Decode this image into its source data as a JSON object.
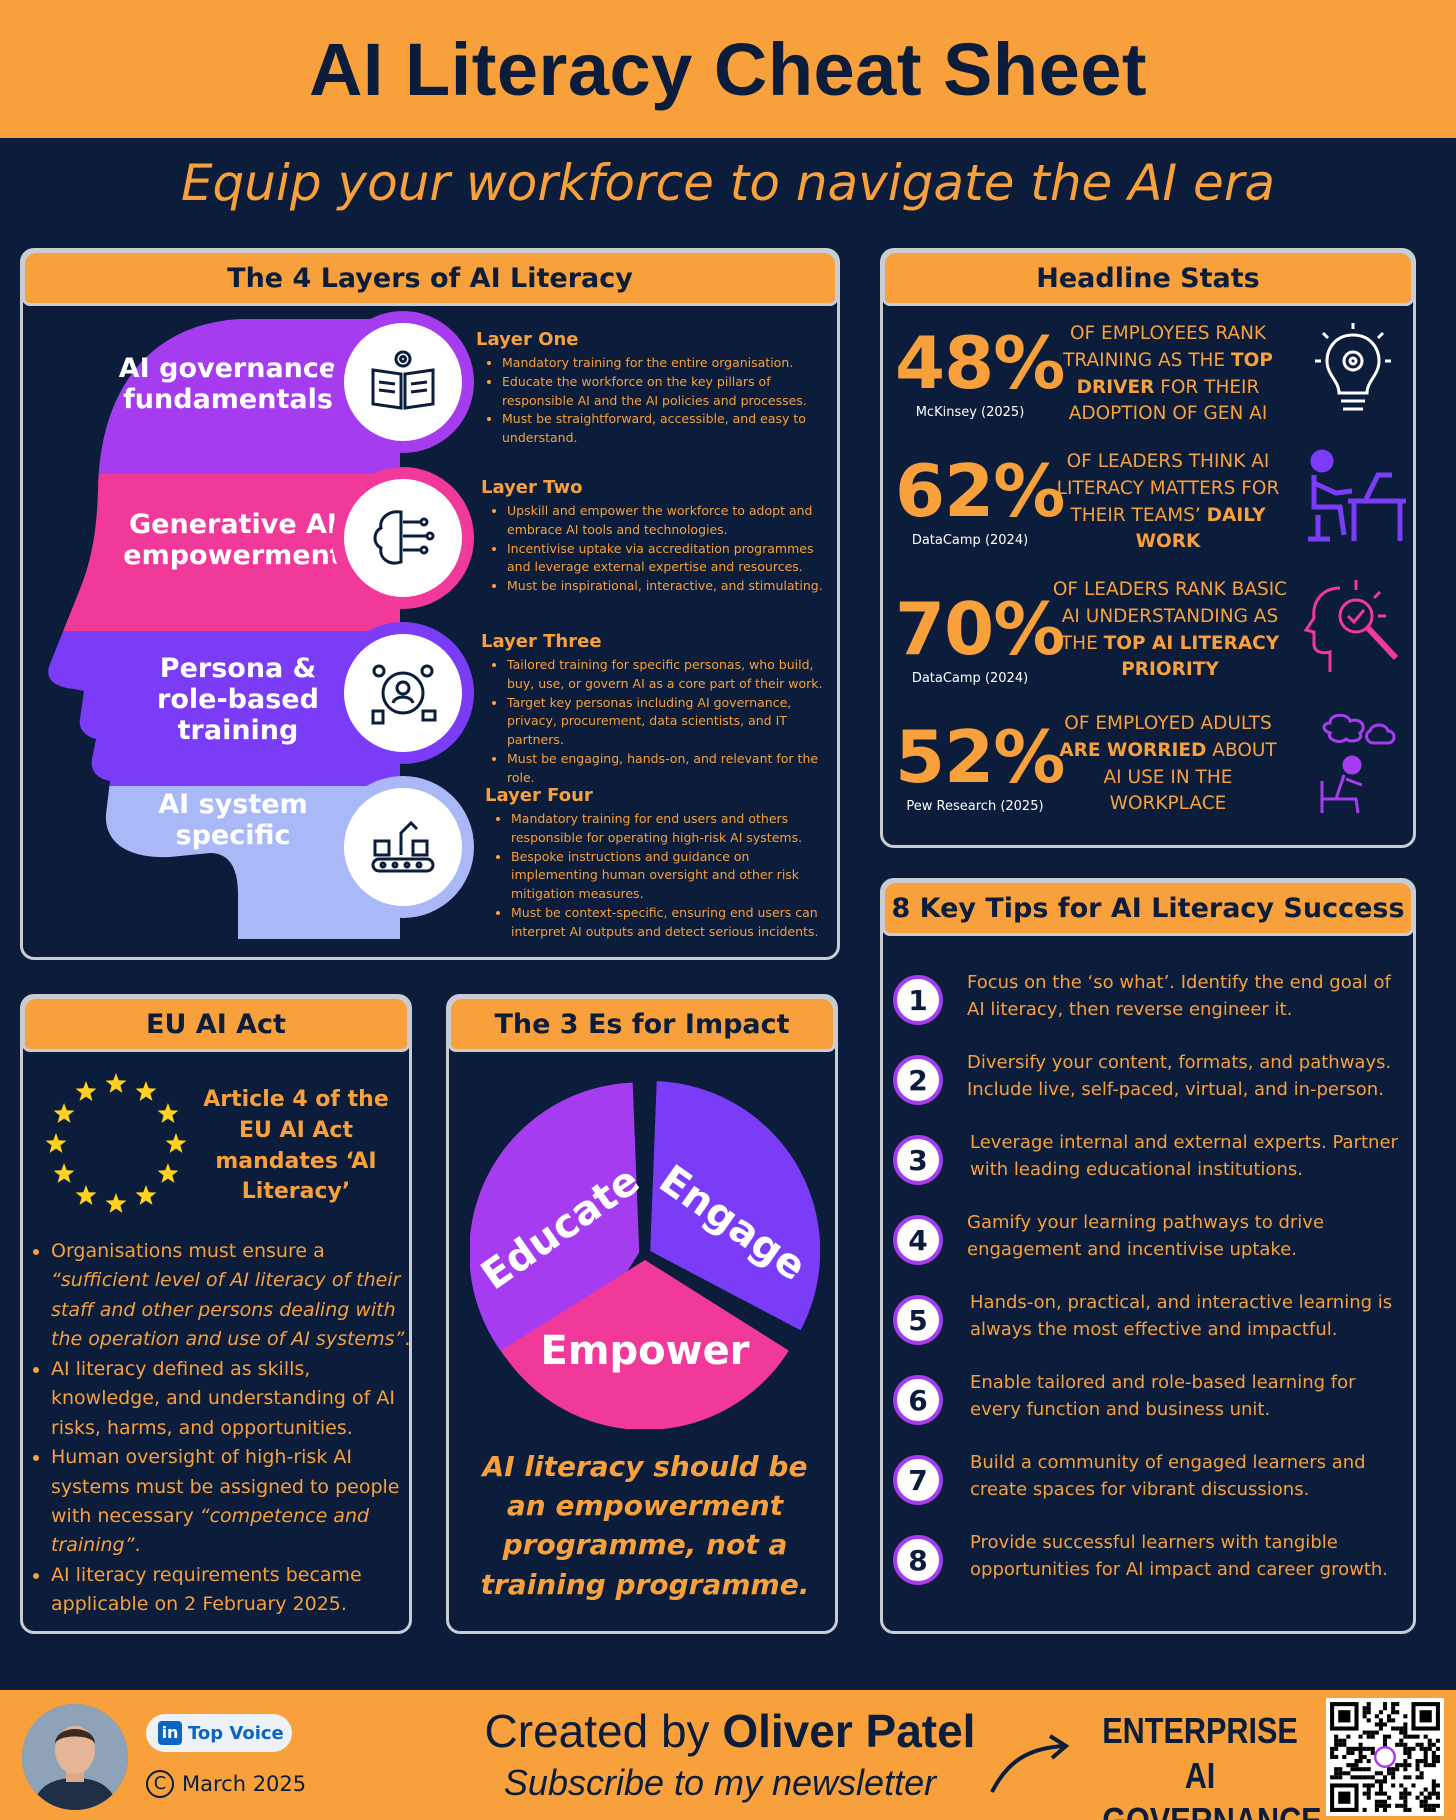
{
  "header": {
    "title": "AI Literacy Cheat Sheet",
    "subtitle": "Equip your workforce to navigate the AI era"
  },
  "layers_panel": {
    "title": "The 4 Layers of AI Literacy",
    "layers": [
      {
        "label": "AI governance fundamentals",
        "heading": "Layer One",
        "icon": "open-book-gear-icon",
        "bullets": [
          "Mandatory training for the entire organisation.",
          "Educate the workforce on the key pillars of responsible AI and the AI policies and processes.",
          "Must be straightforward, accessible, and easy to understand."
        ]
      },
      {
        "label": "Generative AI empowerment",
        "heading": "Layer Two",
        "icon": "brain-circuit-icon",
        "bullets": [
          "Upskill and empower the workforce to adopt and embrace AI tools and technologies.",
          "Incentivise uptake via accreditation programmes and leverage external expertise and resources.",
          "Must be inspirational, interactive, and stimulating."
        ]
      },
      {
        "label": "Persona & role-based training",
        "heading": "Layer Three",
        "icon": "persona-network-icon",
        "bullets": [
          "Tailored training for specific personas, who build, buy, use, or govern AI as a core part of their work.",
          "Target key personas including AI governance, privacy, procurement, data scientists, and IT partners.",
          "Must be engaging, hands-on, and relevant for the role."
        ]
      },
      {
        "label": "AI system specific",
        "heading": "Layer Four",
        "icon": "robot-conveyor-icon",
        "bullets": [
          "Mandatory training for end users and others responsible for operating high-risk AI systems.",
          "Bespoke instructions and guidance on implementing human oversight and other risk mitigation measures.",
          "Must be context-specific, ensuring end users can interpret AI outputs and detect serious incidents."
        ]
      }
    ],
    "colors": [
      "#a63cf0",
      "#f1399a",
      "#7b3cf7",
      "#a9b9f7"
    ]
  },
  "stats_panel": {
    "title": "Headline Stats",
    "stats": [
      {
        "value": "48%",
        "source": "McKinsey (2025)",
        "pre": "OF EMPLOYEES RANK TRAINING AS THE ",
        "bold": "TOP DRIVER",
        "post": " FOR THEIR ADOPTION OF GEN AI",
        "icon": "lightbulb-head-gear-icon"
      },
      {
        "value": "62%",
        "source": "DataCamp (2024)",
        "pre": "OF LEADERS THINK AI LITERACY MATTERS FOR THEIR TEAMS’ ",
        "bold": "DAILY WORK",
        "post": "",
        "icon": "person-at-desk-icon"
      },
      {
        "value": "70%",
        "source": "DataCamp (2024)",
        "pre": "OF LEADERS RANK BASIC AI UNDERSTANDING AS THE ",
        "bold": "TOP AI LITERACY PRIORITY",
        "post": "",
        "icon": "head-magnifier-icon"
      },
      {
        "value": "52%",
        "source": "Pew Research (2025)",
        "pre": "OF EMPLOYED ADULTS ",
        "bold": "ARE WORRIED",
        "post": " ABOUT AI USE IN THE WORKPLACE",
        "icon": "worried-person-icon"
      }
    ]
  },
  "tips_panel": {
    "title": "8 Key Tips for AI Literacy Success",
    "tips": [
      {
        "n": "1",
        "text": "Focus on the ‘so what’. Identify the end goal of AI literacy, then reverse engineer it."
      },
      {
        "n": "2",
        "text": "Diversify your content, formats, and pathways. Include live, self-paced, virtual, and in-person."
      },
      {
        "n": "3",
        "text": "Leverage internal and external experts. Partner with leading educational institutions."
      },
      {
        "n": "4",
        "text": "Gamify your learning pathways to drive engagement and incentivise uptake."
      },
      {
        "n": "5",
        "text": "Hands-on, practical, and interactive learning is always the most effective and impactful."
      },
      {
        "n": "6",
        "text": "Enable tailored and role-based learning for every function and business unit."
      },
      {
        "n": "7",
        "text": "Build a community of engaged learners and create spaces for vibrant discussions."
      },
      {
        "n": "8",
        "text": "Provide successful learners with tangible opportunities for AI impact and career growth."
      }
    ]
  },
  "eu_panel": {
    "title": "EU AI Act",
    "headline": "Article 4 of the EU AI Act mandates ‘AI Literacy’",
    "bullets": [
      {
        "pre": "Organisations must ensure a ",
        "italic": "“sufficient level of AI literacy of their staff and other persons dealing with the operation and use of AI systems”",
        "post": "."
      },
      {
        "pre": "AI literacy defined as skills, knowledge, and understanding of AI risks, harms, and opportunities.",
        "italic": "",
        "post": ""
      },
      {
        "pre": "Human oversight of high-risk AI systems must be assigned to people with necessary ",
        "italic": "“competence and training”",
        "post": "."
      },
      {
        "pre": "AI literacy requirements became applicable on 2 February 2025.",
        "italic": "",
        "post": ""
      }
    ]
  },
  "es_panel": {
    "title": "The 3 Es for Impact",
    "segments": [
      "Educate",
      "Engage",
      "Empower"
    ],
    "colors": [
      "#a63cf0",
      "#7b3cf7",
      "#f1399a"
    ],
    "quote": "AI literacy should be an empowerment programme, not a training programme."
  },
  "footer": {
    "badge": "Top Voice",
    "date": "March 2025",
    "created_pre": "Created by ",
    "created_name": "Oliver Patel",
    "subscribe": "Subscribe to my newsletter",
    "brand_line1": "ENTERPRISE",
    "brand_line2": "AI GOVERNANCE",
    "linkedin_icon": "linkedin-icon",
    "copyright_icon": "copyright-icon"
  }
}
